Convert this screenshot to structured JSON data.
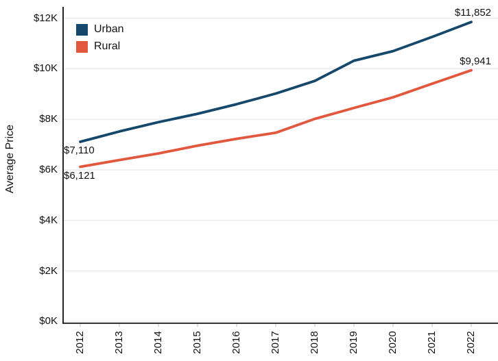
{
  "chart_data": {
    "type": "line",
    "title": "",
    "xlabel": "",
    "ylabel": "Average Price",
    "categories": [
      "2012",
      "2013",
      "2014",
      "2015",
      "2016",
      "2017",
      "2018",
      "2019",
      "2020",
      "2021",
      "2022"
    ],
    "series": [
      {
        "name": "Urban",
        "color": "#16486B",
        "values": [
          7110,
          7520,
          7890,
          8220,
          8600,
          9020,
          9520,
          10320,
          10700,
          11260,
          11852
        ],
        "start_label": "$7,110",
        "end_label": "$11,852"
      },
      {
        "name": "Rural",
        "color": "#E2583E",
        "values": [
          6121,
          6390,
          6650,
          6960,
          7230,
          7470,
          8020,
          8450,
          8870,
          9410,
          9941
        ],
        "start_label": "$6,121",
        "end_label": "$9,941"
      }
    ],
    "y_ticks": [
      {
        "value": 0,
        "label": "$0K"
      },
      {
        "value": 2000,
        "label": "$2K"
      },
      {
        "value": 4000,
        "label": "$4K"
      },
      {
        "value": 6000,
        "label": "$6K"
      },
      {
        "value": 8000,
        "label": "$8K"
      },
      {
        "value": 10000,
        "label": "$10K"
      },
      {
        "value": 12000,
        "label": "$12K"
      }
    ],
    "ylim": [
      0,
      12400
    ],
    "grid": "horizontal",
    "legend_position": "top-left",
    "colors": {
      "background": "#ffffff",
      "axis": "#000000",
      "gridline": "#e8e8e8",
      "tick_mark": "#c9c9c9",
      "text": "#111111"
    }
  }
}
